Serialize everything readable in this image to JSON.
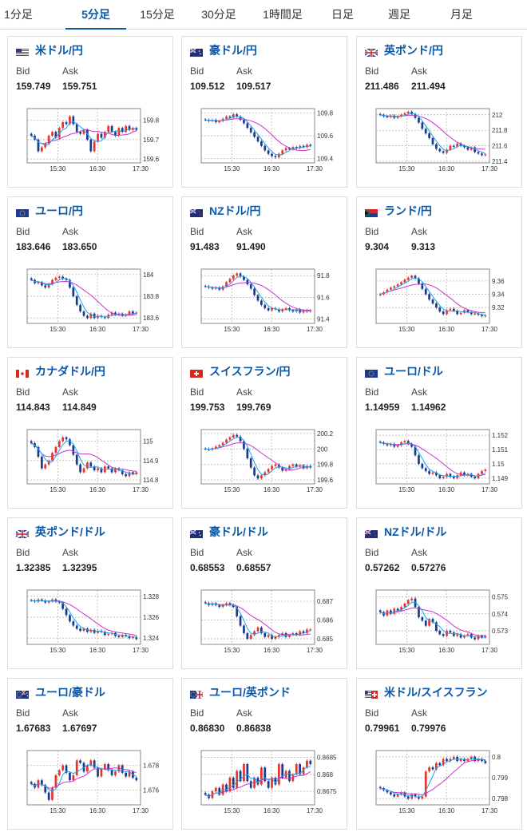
{
  "tabs": [
    {
      "label": "1分足",
      "active": false
    },
    {
      "label": "5分足",
      "active": true
    },
    {
      "label": "15分足",
      "active": false
    },
    {
      "label": "30分足",
      "active": false
    },
    {
      "label": "1時間足",
      "active": false
    },
    {
      "label": "日足",
      "active": false
    },
    {
      "label": "週足",
      "active": false
    },
    {
      "label": "月足",
      "active": false
    }
  ],
  "labels": {
    "bid": "Bid",
    "ask": "Ask"
  },
  "colors": {
    "up": "#e8322c",
    "down": "#1a3a8f",
    "ma_fast": "#1aa3e8",
    "ma_slow": "#cc33cc",
    "link": "#0b58a8"
  },
  "pairs": [
    {
      "name": "米ドル/円",
      "bid": "159.749",
      "ask": "159.751",
      "flag": "us",
      "chart_data": {
        "type": "candlestick",
        "x_ticks": [
          "15:30",
          "16:30",
          "17:30"
        ],
        "y_ticks": [
          "159.8",
          "159.7",
          "159.6"
        ],
        "y_tick_values": [
          159.8,
          159.7,
          159.6
        ],
        "ylim": [
          159.58,
          159.86
        ],
        "closes": [
          159.72,
          159.7,
          159.64,
          159.66,
          159.68,
          159.72,
          159.74,
          159.71,
          159.76,
          159.79,
          159.78,
          159.82,
          159.78,
          159.74,
          159.73,
          159.75,
          159.7,
          159.64,
          159.69,
          159.73,
          159.71,
          159.74,
          159.77,
          159.74,
          159.72,
          159.76,
          159.74,
          159.77,
          159.75,
          159.76,
          159.75
        ]
      }
    },
    {
      "name": "豪ドル/円",
      "bid": "109.512",
      "ask": "109.517",
      "flag": "au",
      "chart_data": {
        "type": "candlestick",
        "x_ticks": [
          "15:30",
          "16:30",
          "17:30"
        ],
        "y_ticks": [
          "109.8",
          "109.6",
          "109.4"
        ],
        "y_tick_values": [
          109.8,
          109.6,
          109.4
        ],
        "ylim": [
          109.36,
          109.84
        ],
        "closes": [
          109.74,
          109.73,
          109.74,
          109.72,
          109.73,
          109.75,
          109.77,
          109.76,
          109.79,
          109.77,
          109.74,
          109.71,
          109.67,
          109.63,
          109.59,
          109.55,
          109.51,
          109.47,
          109.44,
          109.42,
          109.41,
          109.44,
          109.47,
          109.49,
          109.48,
          109.5,
          109.49,
          109.51,
          109.5,
          109.52,
          109.51
        ]
      }
    },
    {
      "name": "英ポンド/円",
      "bid": "211.486",
      "ask": "211.494",
      "flag": "gb",
      "chart_data": {
        "type": "candlestick",
        "x_ticks": [
          "15:30",
          "16:30",
          "17:30"
        ],
        "y_ticks": [
          "212",
          "211.8",
          "211.6",
          "211.4"
        ],
        "y_tick_values": [
          212,
          211.8,
          211.6,
          211.4
        ],
        "ylim": [
          211.38,
          212.08
        ],
        "closes": [
          212.0,
          211.98,
          211.97,
          211.99,
          211.96,
          211.98,
          212.0,
          212.02,
          212.04,
          212.01,
          211.96,
          211.9,
          211.82,
          211.76,
          211.7,
          211.62,
          211.56,
          211.53,
          211.51,
          211.55,
          211.6,
          211.59,
          211.63,
          211.6,
          211.58,
          211.55,
          211.58,
          211.52,
          211.5,
          211.48,
          211.49
        ]
      }
    },
    {
      "name": "ユーロ/円",
      "bid": "183.646",
      "ask": "183.650",
      "flag": "eu",
      "chart_data": {
        "type": "candlestick",
        "x_ticks": [
          "15:30",
          "16:30",
          "17:30"
        ],
        "y_ticks": [
          "184",
          "183.8",
          "183.6"
        ],
        "y_tick_values": [
          184,
          183.8,
          183.6
        ],
        "ylim": [
          183.55,
          184.05
        ],
        "closes": [
          183.95,
          183.92,
          183.93,
          183.9,
          183.88,
          183.91,
          183.95,
          183.97,
          183.98,
          183.96,
          183.95,
          183.88,
          183.8,
          183.72,
          183.66,
          183.62,
          183.6,
          183.64,
          183.6,
          183.62,
          183.61,
          183.6,
          183.63,
          183.65,
          183.63,
          183.64,
          183.62,
          183.63,
          183.66,
          183.64,
          183.65
        ]
      }
    },
    {
      "name": "NZドル/円",
      "bid": "91.483",
      "ask": "91.490",
      "flag": "nz",
      "chart_data": {
        "type": "candlestick",
        "x_ticks": [
          "15:30",
          "16:30",
          "17:30"
        ],
        "y_ticks": [
          "91.8",
          "91.6",
          "91.4"
        ],
        "y_tick_values": [
          91.8,
          91.6,
          91.4
        ],
        "ylim": [
          91.36,
          91.86
        ],
        "closes": [
          91.7,
          91.69,
          91.68,
          91.69,
          91.67,
          91.7,
          91.74,
          91.77,
          91.8,
          91.82,
          91.79,
          91.76,
          91.72,
          91.68,
          91.62,
          91.57,
          91.53,
          91.5,
          91.48,
          91.5,
          91.49,
          91.47,
          91.49,
          91.5,
          91.48,
          91.47,
          91.49,
          91.46,
          91.48,
          91.47,
          91.48
        ]
      }
    },
    {
      "name": "ランド/円",
      "bid": "9.304",
      "ask": "9.313",
      "flag": "za",
      "chart_data": {
        "type": "candlestick",
        "x_ticks": [
          "15:30",
          "16:30",
          "17:30"
        ],
        "y_ticks": [
          "9.36",
          "9.34",
          "9.32"
        ],
        "y_tick_values": [
          9.36,
          9.34,
          9.32
        ],
        "ylim": [
          9.296,
          9.378
        ],
        "closes": [
          9.34,
          9.343,
          9.347,
          9.35,
          9.352,
          9.355,
          9.358,
          9.362,
          9.365,
          9.368,
          9.364,
          9.356,
          9.348,
          9.34,
          9.332,
          9.326,
          9.32,
          9.314,
          9.31,
          9.316,
          9.318,
          9.315,
          9.31,
          9.312,
          9.316,
          9.313,
          9.31,
          9.311,
          9.309,
          9.307,
          9.308
        ]
      }
    },
    {
      "name": "カナダドル/円",
      "bid": "114.843",
      "ask": "114.849",
      "flag": "ca",
      "chart_data": {
        "type": "candlestick",
        "x_ticks": [
          "15:30",
          "16:30",
          "17:30"
        ],
        "y_ticks": [
          "115",
          "114.9",
          "114.8"
        ],
        "y_tick_values": [
          115,
          114.9,
          114.8
        ],
        "ylim": [
          114.78,
          115.06
        ],
        "closes": [
          114.99,
          114.97,
          114.92,
          114.86,
          114.88,
          114.9,
          114.94,
          114.97,
          115.0,
          115.02,
          115.01,
          114.98,
          114.93,
          114.88,
          114.84,
          114.86,
          114.89,
          114.87,
          114.85,
          114.86,
          114.84,
          114.87,
          114.86,
          114.84,
          114.86,
          114.85,
          114.83,
          114.82,
          114.84,
          114.83,
          114.84
        ]
      }
    },
    {
      "name": "スイスフラン/円",
      "bid": "199.753",
      "ask": "199.769",
      "flag": "ch",
      "chart_data": {
        "type": "candlestick",
        "x_ticks": [
          "15:30",
          "16:30",
          "17:30"
        ],
        "y_ticks": [
          "200.2",
          "200",
          "199.8",
          "199.6"
        ],
        "y_tick_values": [
          200.2,
          200,
          199.8,
          199.6
        ],
        "ylim": [
          199.55,
          200.25
        ],
        "closes": [
          200.0,
          199.99,
          200.01,
          200.03,
          200.05,
          200.08,
          200.12,
          200.15,
          200.18,
          200.16,
          200.1,
          200.0,
          199.88,
          199.76,
          199.66,
          199.62,
          199.66,
          199.7,
          199.74,
          199.78,
          199.8,
          199.76,
          199.72,
          199.74,
          199.78,
          199.8,
          199.77,
          199.79,
          199.75,
          199.78,
          199.76
        ]
      }
    },
    {
      "name": "ユーロ/ドル",
      "bid": "1.14959",
      "ask": "1.14962",
      "flag": "eu",
      "chart_data": {
        "type": "candlestick",
        "x_ticks": [
          "15:30",
          "16:30",
          "17:30"
        ],
        "y_ticks": [
          "1.152",
          "1.151",
          "1.15",
          "1.149"
        ],
        "y_tick_values": [
          1.152,
          1.151,
          1.15,
          1.149
        ],
        "ylim": [
          1.1486,
          1.1524
        ],
        "closes": [
          1.1515,
          1.1514,
          1.1513,
          1.1514,
          1.1512,
          1.1513,
          1.1515,
          1.1516,
          1.1514,
          1.1512,
          1.1506,
          1.15,
          1.1497,
          1.1495,
          1.1493,
          1.1494,
          1.1492,
          1.149,
          1.1491,
          1.1493,
          1.1491,
          1.149,
          1.1492,
          1.1494,
          1.1492,
          1.1493,
          1.1491,
          1.149,
          1.1493,
          1.1495,
          1.1496
        ]
      }
    },
    {
      "name": "英ポンド/ドル",
      "bid": "1.32385",
      "ask": "1.32395",
      "flag": "gb",
      "chart_data": {
        "type": "candlestick",
        "x_ticks": [
          "15:30",
          "16:30",
          "17:30"
        ],
        "y_ticks": [
          "1.328",
          "1.326",
          "1.324"
        ],
        "y_tick_values": [
          1.328,
          1.326,
          1.324
        ],
        "ylim": [
          1.3234,
          1.3286
        ],
        "closes": [
          1.3276,
          1.3275,
          1.3277,
          1.3276,
          1.3274,
          1.3275,
          1.3277,
          1.3275,
          1.3274,
          1.3268,
          1.3262,
          1.3256,
          1.3252,
          1.3249,
          1.3247,
          1.3249,
          1.3246,
          1.3248,
          1.3245,
          1.3247,
          1.3246,
          1.3243,
          1.3244,
          1.3245,
          1.3242,
          1.3241,
          1.3243,
          1.3242,
          1.324,
          1.3241,
          1.3239
        ]
      }
    },
    {
      "name": "豪ドル/ドル",
      "bid": "0.68553",
      "ask": "0.68557",
      "flag": "au",
      "chart_data": {
        "type": "candlestick",
        "x_ticks": [
          "15:30",
          "16:30",
          "17:30"
        ],
        "y_ticks": [
          "0.687",
          "0.686",
          "0.685"
        ],
        "y_tick_values": [
          0.687,
          0.686,
          0.685
        ],
        "ylim": [
          0.6847,
          0.6876
        ],
        "closes": [
          0.6869,
          0.6868,
          0.6869,
          0.6868,
          0.6867,
          0.6868,
          0.6869,
          0.6868,
          0.6867,
          0.6862,
          0.6857,
          0.6853,
          0.685,
          0.6852,
          0.6854,
          0.6856,
          0.6853,
          0.6851,
          0.6852,
          0.685,
          0.6851,
          0.6852,
          0.6853,
          0.6851,
          0.6852,
          0.6853,
          0.6852,
          0.6854,
          0.6853,
          0.6855,
          0.6855
        ]
      }
    },
    {
      "name": "NZドル/ドル",
      "bid": "0.57262",
      "ask": "0.57276",
      "flag": "nz",
      "chart_data": {
        "type": "candlestick",
        "x_ticks": [
          "15:30",
          "16:30",
          "17:30"
        ],
        "y_ticks": [
          "0.575",
          "0.574",
          "0.573"
        ],
        "y_tick_values": [
          0.575,
          0.574,
          0.573
        ],
        "ylim": [
          0.5722,
          0.5754
        ],
        "closes": [
          0.5741,
          0.5739,
          0.5742,
          0.574,
          0.5743,
          0.5742,
          0.5744,
          0.5746,
          0.5748,
          0.5749,
          0.5744,
          0.5738,
          0.5736,
          0.5733,
          0.5737,
          0.5735,
          0.573,
          0.5728,
          0.5727,
          0.573,
          0.5729,
          0.5727,
          0.5728,
          0.5726,
          0.5727,
          0.5728,
          0.5726,
          0.5725,
          0.5727,
          0.5726,
          0.5727
        ]
      }
    },
    {
      "name": "ユーロ/豪ドル",
      "bid": "1.67683",
      "ask": "1.67697",
      "flag": "euau",
      "chart_data": {
        "type": "candlestick",
        "x_ticks": [
          "15:30",
          "16:30",
          "17:30"
        ],
        "y_ticks": [
          "1.678",
          "1.676"
        ],
        "y_tick_values": [
          1.678,
          1.676
        ],
        "ylim": [
          1.6748,
          1.6792
        ],
        "closes": [
          1.6765,
          1.6762,
          1.6768,
          1.6764,
          1.6758,
          1.6752,
          1.6762,
          1.6772,
          1.6776,
          1.678,
          1.6774,
          1.6768,
          1.6772,
          1.6784,
          1.6782,
          1.6775,
          1.678,
          1.6784,
          1.6778,
          1.6771,
          1.6777,
          1.6781,
          1.6776,
          1.6772,
          1.6775,
          1.678,
          1.6774,
          1.6771,
          1.6775,
          1.677,
          1.6768
        ]
      }
    },
    {
      "name": "ユーロ/英ポンド",
      "bid": "0.86830",
      "ask": "0.86838",
      "flag": "eugb",
      "chart_data": {
        "type": "candlestick",
        "x_ticks": [
          "15:30",
          "16:30",
          "17:30"
        ],
        "y_ticks": [
          "0.8685",
          "0.868",
          "0.8675"
        ],
        "y_tick_values": [
          0.8685,
          0.868,
          0.8675
        ],
        "ylim": [
          0.8671,
          0.8687
        ],
        "closes": [
          0.8674,
          0.8673,
          0.8675,
          0.8676,
          0.8674,
          0.8677,
          0.8675,
          0.8679,
          0.8676,
          0.8681,
          0.8678,
          0.8683,
          0.8678,
          0.8676,
          0.8679,
          0.8677,
          0.8682,
          0.8678,
          0.8676,
          0.8679,
          0.8677,
          0.8683,
          0.8679,
          0.8681,
          0.8678,
          0.868,
          0.8683,
          0.868,
          0.8682,
          0.8684,
          0.8683
        ]
      }
    },
    {
      "name": "米ドル/スイスフラン",
      "bid": "0.79961",
      "ask": "0.79976",
      "flag": "usch",
      "chart_data": {
        "type": "candlestick",
        "x_ticks": [
          "15:30",
          "16:30",
          "17:30"
        ],
        "y_ticks": [
          "0.8",
          "0.799",
          "0.798"
        ],
        "y_tick_values": [
          0.8,
          0.799,
          0.798
        ],
        "ylim": [
          0.7977,
          0.8003
        ],
        "closes": [
          0.7985,
          0.7984,
          0.7983,
          0.7982,
          0.7981,
          0.7982,
          0.7983,
          0.7981,
          0.798,
          0.7982,
          0.7981,
          0.798,
          0.7981,
          0.7993,
          0.7995,
          0.7994,
          0.7997,
          0.7996,
          0.7999,
          0.7998,
          0.7999,
          0.8,
          0.7998,
          0.7999,
          0.7998,
          0.7999,
          0.8,
          0.7998,
          0.7999,
          0.7998,
          0.7997
        ]
      }
    }
  ]
}
